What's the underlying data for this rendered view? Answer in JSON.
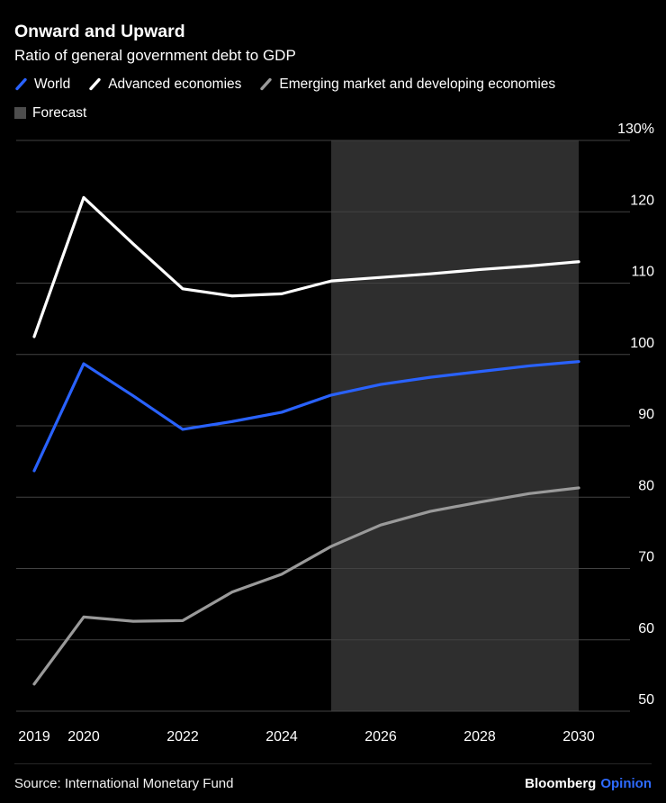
{
  "header": {
    "title": "Onward and Upward",
    "subtitle": "Ratio of general government debt to GDP"
  },
  "legend": {
    "items": [
      {
        "id": "world",
        "label": "World",
        "color": "#2962ff",
        "marker": "slash"
      },
      {
        "id": "advanced-economies",
        "label": "Advanced economies",
        "color": "#ffffff",
        "marker": "slash"
      },
      {
        "id": "emerging-economies",
        "label": "Emerging market and developing economies",
        "color": "#9a9a9a",
        "marker": "slash"
      },
      {
        "id": "forecast",
        "label": "Forecast",
        "color": "#4d4d4d",
        "marker": "square"
      }
    ]
  },
  "chart_data": {
    "type": "line",
    "title": "Onward and Upward",
    "subtitle": "Ratio of general government debt to GDP",
    "x": [
      2019,
      2020,
      2021,
      2022,
      2023,
      2024,
      2025,
      2026,
      2027,
      2028,
      2029,
      2030
    ],
    "series": [
      {
        "name": "World",
        "color": "#2962ff",
        "values": [
          83.7,
          98.7,
          94.2,
          89.5,
          90.6,
          91.9,
          94.3,
          95.8,
          96.8,
          97.6,
          98.4,
          99.0
        ]
      },
      {
        "name": "Advanced economies",
        "color": "#ffffff",
        "values": [
          102.5,
          122.0,
          115.5,
          109.2,
          108.2,
          108.5,
          110.3,
          110.8,
          111.3,
          111.9,
          112.4,
          113.0
        ]
      },
      {
        "name": "Emerging market and developing economies",
        "color": "#9a9a9a",
        "values": [
          53.8,
          63.2,
          62.6,
          62.7,
          66.7,
          69.2,
          73.1,
          76.1,
          78.0,
          79.3,
          80.5,
          81.3
        ]
      }
    ],
    "forecast": {
      "start": 2025,
      "end": 2030,
      "label": "Forecast"
    },
    "ylim": [
      50,
      130
    ],
    "yticks": [
      {
        "value": 130,
        "label": "130%"
      },
      {
        "value": 120,
        "label": "120"
      },
      {
        "value": 110,
        "label": "110"
      },
      {
        "value": 100,
        "label": "100"
      },
      {
        "value": 90,
        "label": "90"
      },
      {
        "value": 80,
        "label": "80"
      },
      {
        "value": 70,
        "label": "70"
      },
      {
        "value": 60,
        "label": "60"
      },
      {
        "value": 50,
        "label": "50"
      }
    ],
    "xticks": [
      2019,
      2020,
      2022,
      2024,
      2026,
      2028,
      2030
    ],
    "grid": true,
    "legend_position": "top",
    "xlabel": "",
    "ylabel": ""
  },
  "colors": {
    "background": "#000000",
    "gridline": "#424242",
    "forecast_fill": "#2e2e2e",
    "axis_text": "#ffffff",
    "brand_blue": "#2e6bff"
  },
  "footer": {
    "source": "Source: International Monetary Fund",
    "brand": "Bloomberg",
    "brand_suffix": "Opinion"
  }
}
